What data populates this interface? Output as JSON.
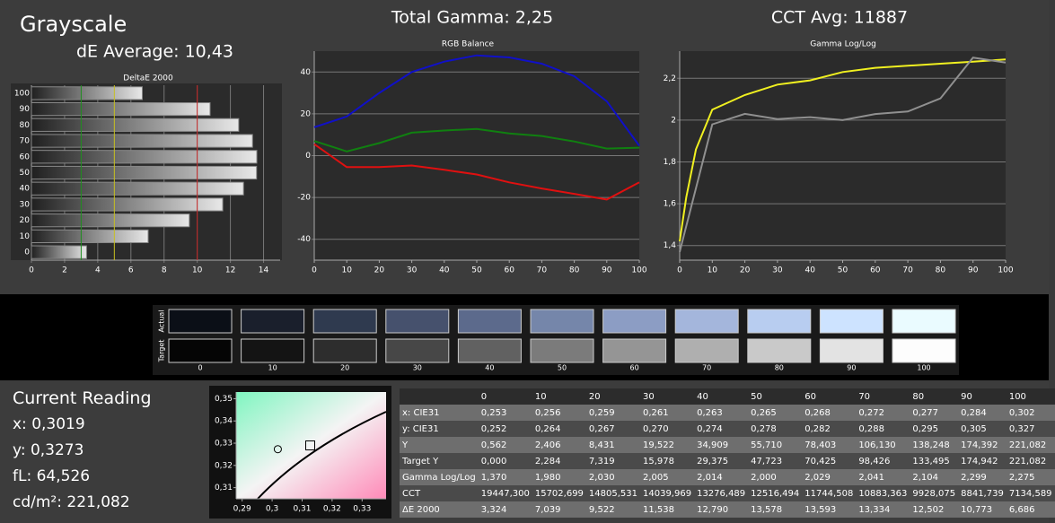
{
  "header": {
    "title": "Grayscale",
    "de_average": "dE Average: 10,43",
    "total_gamma": "Total Gamma: 2,25",
    "cct_avg": "CCT Avg: 11887"
  },
  "chart_data": [
    {
      "type": "hbar",
      "title": "DeltaE 2000",
      "categories": [
        "0",
        "10",
        "20",
        "30",
        "40",
        "50",
        "60",
        "70",
        "80",
        "90",
        "100"
      ],
      "values": [
        3.324,
        7.039,
        9.522,
        11.538,
        12.79,
        13.578,
        13.593,
        13.334,
        12.502,
        10.773,
        6.686
      ],
      "xlim": [
        0,
        15
      ],
      "xticks": [
        0,
        2,
        4,
        6,
        8,
        10,
        12,
        14
      ],
      "grid": "x",
      "reference_lines": [
        {
          "value": 3,
          "color": "#1f8f1f"
        },
        {
          "value": 5,
          "color": "#c8c020"
        },
        {
          "value": 10,
          "color": "#c02020"
        }
      ]
    },
    {
      "type": "line",
      "title": "RGB Balance",
      "x": [
        0,
        10,
        20,
        30,
        40,
        50,
        60,
        70,
        80,
        90,
        100
      ],
      "series": [
        {
          "color": "#1010c8",
          "values": [
            13.6,
            18.7,
            30,
            40,
            45,
            48,
            47,
            44,
            38,
            26,
            4.7
          ]
        },
        {
          "color": "#108010",
          "values": [
            7,
            2,
            6,
            11,
            12,
            12.8,
            10.6,
            9.4,
            6.8,
            3.4,
            3.8
          ]
        },
        {
          "color": "#e01010",
          "values": [
            5.5,
            -5.5,
            -5.5,
            -4.7,
            -6.8,
            -9,
            -12.8,
            -15.7,
            -18.3,
            -21,
            -12.8
          ]
        }
      ],
      "xlim": [
        0,
        100
      ],
      "xticks": [
        0,
        10,
        20,
        30,
        40,
        50,
        60,
        70,
        80,
        90,
        100
      ],
      "ylim": [
        -50,
        50
      ],
      "yticks": [
        -40,
        -20,
        0,
        20,
        40
      ],
      "grid": "y"
    },
    {
      "type": "line",
      "title": "Gamma Log/Log",
      "series": [
        {
          "color": "#f0f020",
          "x": [
            0,
            2,
            5,
            10,
            20,
            30,
            40,
            50,
            60,
            70,
            80,
            90,
            100
          ],
          "values": [
            1.42,
            1.63,
            1.86,
            2.05,
            2.12,
            2.17,
            2.19,
            2.23,
            2.25,
            2.26,
            2.27,
            2.28,
            2.29
          ]
        },
        {
          "color": "#909090",
          "x": [
            0,
            10,
            20,
            30,
            40,
            50,
            60,
            70,
            80,
            90,
            100
          ],
          "values": [
            1.37,
            1.98,
            2.03,
            2.005,
            2.014,
            2,
            2.029,
            2.041,
            2.104,
            2.299,
            2.275
          ]
        }
      ],
      "xlim": [
        0,
        100
      ],
      "xticks": [
        0,
        10,
        20,
        30,
        40,
        50,
        60,
        70,
        80,
        90,
        100
      ],
      "ylim": [
        1.33,
        2.33
      ],
      "yticks": [
        {
          "value": 1.4,
          "label": "1,4"
        },
        {
          "value": 1.6,
          "label": "1,6"
        },
        {
          "value": 1.8,
          "label": "1,8"
        },
        2,
        {
          "value": 2.2,
          "label": "2,2"
        }
      ],
      "grid": "y"
    },
    {
      "type": "scatter",
      "series": [
        {
          "marker": "circle",
          "x": [
            0.3019
          ],
          "values": [
            0.3273
          ]
        },
        {
          "marker": "square",
          "x": [
            0.3127
          ],
          "values": [
            0.329
          ]
        }
      ],
      "xlim": [
        0.288,
        0.338
      ],
      "xticks": [
        {
          "value": 0.29,
          "label": "0,29"
        },
        {
          "value": 0.3,
          "label": "0,3"
        },
        {
          "value": 0.31,
          "label": "0,31"
        },
        {
          "value": 0.32,
          "label": "0,32"
        },
        {
          "value": 0.33,
          "label": "0,33"
        }
      ],
      "ylim": [
        0.305,
        0.353
      ],
      "yticks": [
        {
          "value": 0.31,
          "label": "0,31"
        },
        {
          "value": 0.32,
          "label": "0,32"
        },
        {
          "value": 0.33,
          "label": "0,33"
        },
        {
          "value": 0.34,
          "label": "0,34"
        },
        {
          "value": 0.35,
          "label": "0,35"
        }
      ]
    }
  ],
  "swatches": {
    "actual_label": "Actual",
    "target_label": "Target",
    "columns": [
      "0",
      "10",
      "20",
      "30",
      "40",
      "50",
      "60",
      "70",
      "80",
      "90",
      "100"
    ],
    "actual_colors": [
      "#0b0f17",
      "#1a1f2c",
      "#2f3a4f",
      "#46516d",
      "#5c6a8c",
      "#7586aa",
      "#8c9dc4",
      "#a4b6dc",
      "#b8cdf0",
      "#cde3ff",
      "#eafbff"
    ],
    "target_colors": [
      "#050505",
      "#141414",
      "#2d2d2d",
      "#474747",
      "#616161",
      "#7b7b7b",
      "#959595",
      "#afafaf",
      "#c9c9c9",
      "#e3e3e3",
      "#fdfdfd"
    ]
  },
  "current_reading": {
    "title": "Current Reading",
    "lines": [
      "x: 0,3019",
      "y: 0,3273",
      "fL: 64,526",
      "cd/m²: 221,082"
    ]
  },
  "table": {
    "header": [
      "",
      "0",
      "10",
      "20",
      "30",
      "40",
      "50",
      "60",
      "70",
      "80",
      "90",
      "100"
    ],
    "rows": [
      [
        "x: CIE31",
        "0,253",
        "0,256",
        "0,259",
        "0,261",
        "0,263",
        "0,265",
        "0,268",
        "0,272",
        "0,277",
        "0,284",
        "0,302"
      ],
      [
        "y: CIE31",
        "0,252",
        "0,264",
        "0,267",
        "0,270",
        "0,274",
        "0,278",
        "0,282",
        "0,288",
        "0,295",
        "0,305",
        "0,327"
      ],
      [
        "Y",
        "0,562",
        "2,406",
        "8,431",
        "19,522",
        "34,909",
        "55,710",
        "78,403",
        "106,130",
        "138,248",
        "174,392",
        "221,082"
      ],
      [
        "Target Y",
        "0,000",
        "2,284",
        "7,319",
        "15,978",
        "29,375",
        "47,723",
        "70,425",
        "98,426",
        "133,495",
        "174,942",
        "221,082"
      ],
      [
        "Gamma Log/Log",
        "1,370",
        "1,980",
        "2,030",
        "2,005",
        "2,014",
        "2,000",
        "2,029",
        "2,041",
        "2,104",
        "2,299",
        "2,275"
      ],
      [
        "CCT",
        "19447,300",
        "15702,699",
        "14805,531",
        "14039,969",
        "13276,489",
        "12516,494",
        "11744,508",
        "10883,363",
        "9928,075",
        "8841,739",
        "7134,589"
      ],
      [
        "ΔE 2000",
        "3,324",
        "7,039",
        "9,522",
        "11,538",
        "12,790",
        "13,578",
        "13,593",
        "13,334",
        "12,502",
        "10,773",
        "6,686"
      ]
    ]
  }
}
